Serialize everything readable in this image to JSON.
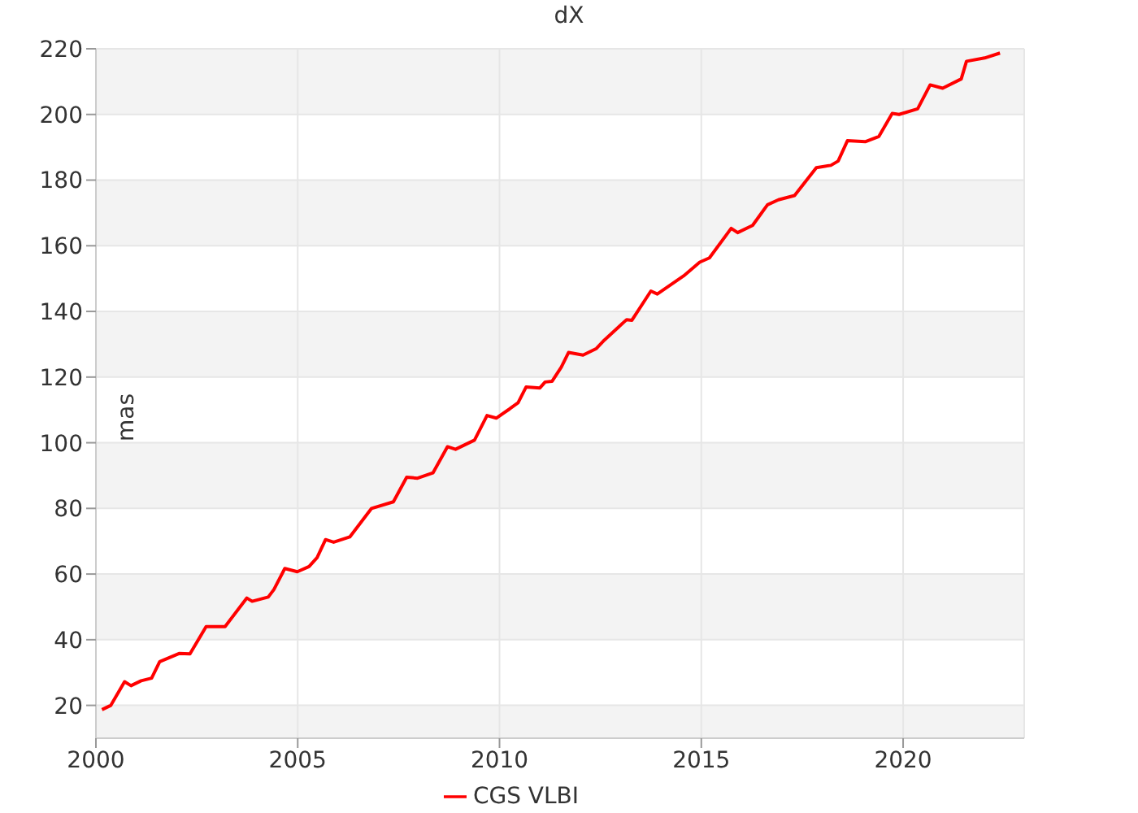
{
  "chart_data": {
    "type": "line",
    "title": "dX",
    "ylabel": "mas",
    "xlim": [
      2000,
      2023
    ],
    "xticks": [
      2000,
      2005,
      2010,
      2015,
      2020
    ],
    "ylim": [
      10,
      220
    ],
    "yticks": [
      20,
      40,
      60,
      80,
      100,
      120,
      140,
      160,
      180,
      200,
      220
    ],
    "grid": true,
    "legend": "bottom",
    "marker": "none",
    "line_style": "solid",
    "x": [
      2000.15,
      2000.37,
      2000.71,
      2000.87,
      2001.12,
      2001.38,
      2001.58,
      2002.06,
      2002.33,
      2002.73,
      2003.2,
      2003.74,
      2003.87,
      2004.27,
      2004.41,
      2004.68,
      2004.99,
      2005.28,
      2005.48,
      2005.69,
      2005.89,
      2006.29,
      2006.83,
      2007.37,
      2007.7,
      2007.97,
      2008.35,
      2008.71,
      2008.91,
      2009.38,
      2009.69,
      2009.92,
      2010.25,
      2010.46,
      2010.66,
      2011.0,
      2011.13,
      2011.3,
      2011.53,
      2011.71,
      2012.07,
      2012.4,
      2012.6,
      2013.15,
      2013.28,
      2013.75,
      2013.91,
      2014.56,
      2014.96,
      2015.2,
      2015.74,
      2015.9,
      2016.27,
      2016.64,
      2016.91,
      2017.31,
      2017.85,
      2018.21,
      2018.39,
      2018.62,
      2019.06,
      2019.4,
      2019.73,
      2019.9,
      2020.36,
      2020.67,
      2020.98,
      2021.44,
      2021.57,
      2022.02,
      2022.4
    ],
    "series": [
      {
        "name": "CGS VLBI",
        "color": "#ff0000",
        "values": [
          18.7,
          20,
          27.2,
          26,
          27.5,
          28.3,
          33.3,
          35.8,
          35.7,
          44,
          44,
          52.7,
          51.7,
          53,
          55.3,
          61.7,
          60.7,
          62.3,
          65,
          70.5,
          69.7,
          71.3,
          80,
          82,
          89.5,
          89.2,
          90.8,
          98.8,
          98,
          100.8,
          108.3,
          107.5,
          110.3,
          112.2,
          117,
          116.7,
          118.5,
          118.7,
          123,
          127.5,
          126.7,
          128.7,
          131.3,
          137.5,
          137.3,
          146.2,
          145.3,
          150.8,
          155,
          156.3,
          165.3,
          164,
          166.2,
          172.5,
          174,
          175.3,
          183.8,
          184.5,
          185.8,
          192,
          191.7,
          193.3,
          200.3,
          200,
          201.7,
          209,
          208,
          210.8,
          216.2,
          217.2,
          218.7
        ]
      }
    ]
  }
}
